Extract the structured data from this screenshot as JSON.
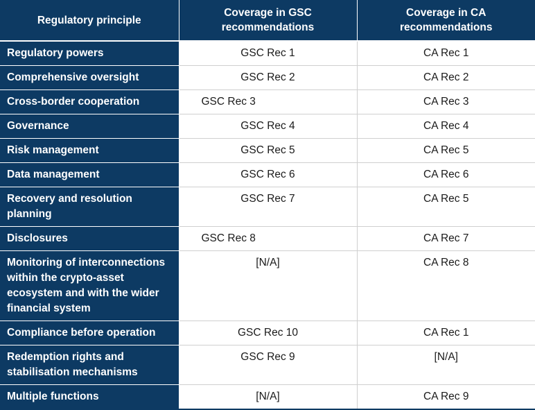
{
  "headers": {
    "principle": "Regulatory principle",
    "gsc": "Coverage in GSC recommendations",
    "ca": "Coverage in CA recommendations"
  },
  "rows": [
    {
      "principle": "Regulatory powers",
      "gsc": "GSC Rec 1",
      "ca": "CA Rec 1"
    },
    {
      "principle": "Comprehensive oversight",
      "gsc": "GSC Rec 2",
      "ca": "CA Rec 2"
    },
    {
      "principle": "Cross-border cooperation",
      "gsc": "GSC Rec 3",
      "ca": "CA Rec 3"
    },
    {
      "principle": "Governance",
      "gsc": "GSC Rec 4",
      "ca": "CA Rec 4"
    },
    {
      "principle": "Risk management",
      "gsc": "GSC Rec 5",
      "ca": "CA Rec 5"
    },
    {
      "principle": "Data management",
      "gsc": "GSC Rec 6",
      "ca": "CA Rec 6"
    },
    {
      "principle": "Recovery and resolution planning",
      "gsc": "GSC Rec 7",
      "ca": "CA Rec 5"
    },
    {
      "principle": "Disclosures",
      "gsc": "GSC Rec 8",
      "ca": "CA Rec 7"
    },
    {
      "principle": "Monitoring of interconnections within the crypto-asset ecosystem and with the wider financial system",
      "gsc": "[N/A]",
      "ca": "CA Rec 8"
    },
    {
      "principle": "Compliance before operation",
      "gsc": "GSC Rec 10",
      "ca": "CA Rec 1"
    },
    {
      "principle": "Redemption rights and stabilisation mechanisms",
      "gsc": "GSC Rec 9",
      "ca": "[N/A]"
    },
    {
      "principle": "Multiple functions",
      "gsc": "[N/A]",
      "ca": "CA Rec 9"
    }
  ]
}
